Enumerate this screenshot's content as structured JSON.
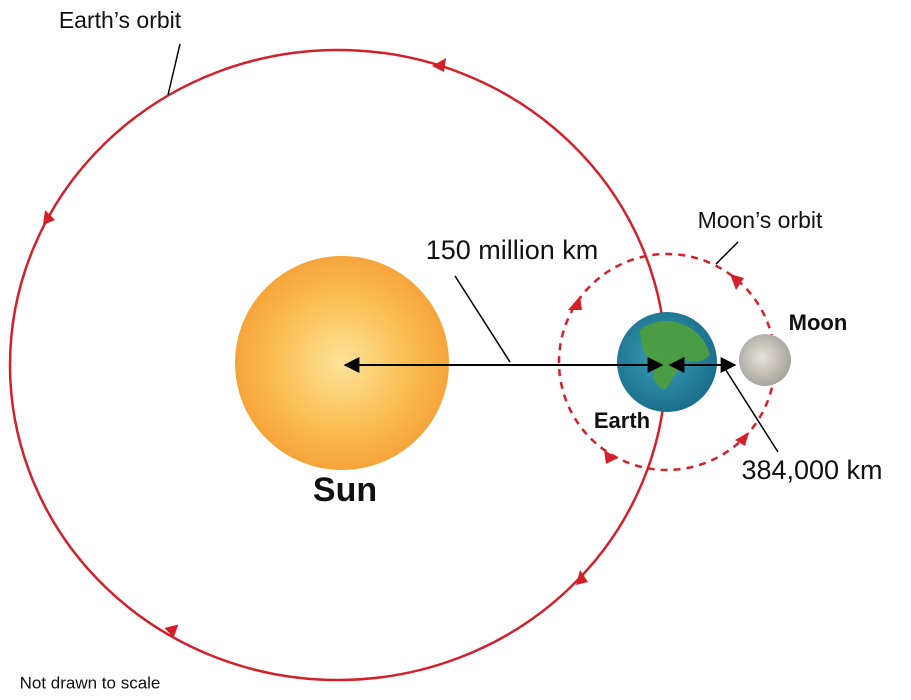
{
  "labels": {
    "earth_orbit": "Earth’s orbit",
    "moon_orbit": "Moon’s orbit",
    "sun_earth_distance": "150 million km",
    "moon": "Moon",
    "earth": "Earth",
    "sun": "Sun",
    "earth_moon_distance": "384,000 km",
    "note": "Not drawn to scale"
  }
}
